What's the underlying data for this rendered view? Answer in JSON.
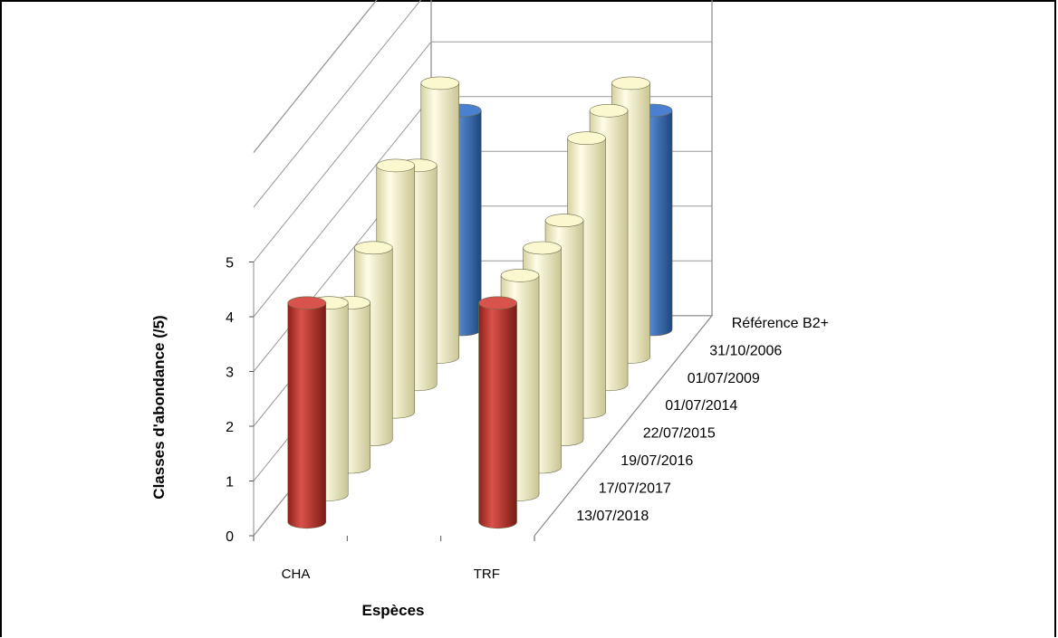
{
  "chart_data": {
    "type": "bar",
    "subtype": "3d-cylinder",
    "title": "",
    "xlabel": "Espèces",
    "ylabel": "Classes d'abondance  (/5)",
    "categories": [
      "CHA",
      "TRF"
    ],
    "ylim": [
      0,
      5
    ],
    "yticks": [
      "0",
      "1",
      "2",
      "3",
      "4",
      "5"
    ],
    "grid": true,
    "series": [
      {
        "name": "13/07/2018",
        "color": "#c0392b",
        "values": [
          4,
          4
        ]
      },
      {
        "name": "17/07/2017",
        "color": "#f6f3c2",
        "values": [
          3.5,
          4
        ]
      },
      {
        "name": "19/07/2016",
        "color": "#f6f3c2",
        "values": [
          3,
          4
        ]
      },
      {
        "name": "22/07/2015",
        "color": "#f6f3c2",
        "values": [
          3.5,
          4
        ]
      },
      {
        "name": "01/07/2014",
        "color": "#f6f3c2",
        "values": [
          4.5,
          5
        ]
      },
      {
        "name": "01/07/2009",
        "color": "#f6f3c2",
        "values": [
          4,
          5
        ]
      },
      {
        "name": "31/10/2006",
        "color": "#f6f3c2",
        "values": [
          5,
          5
        ]
      },
      {
        "name": "Référence B2+",
        "color": "#3a6fc4",
        "values": [
          4,
          4
        ]
      }
    ]
  }
}
